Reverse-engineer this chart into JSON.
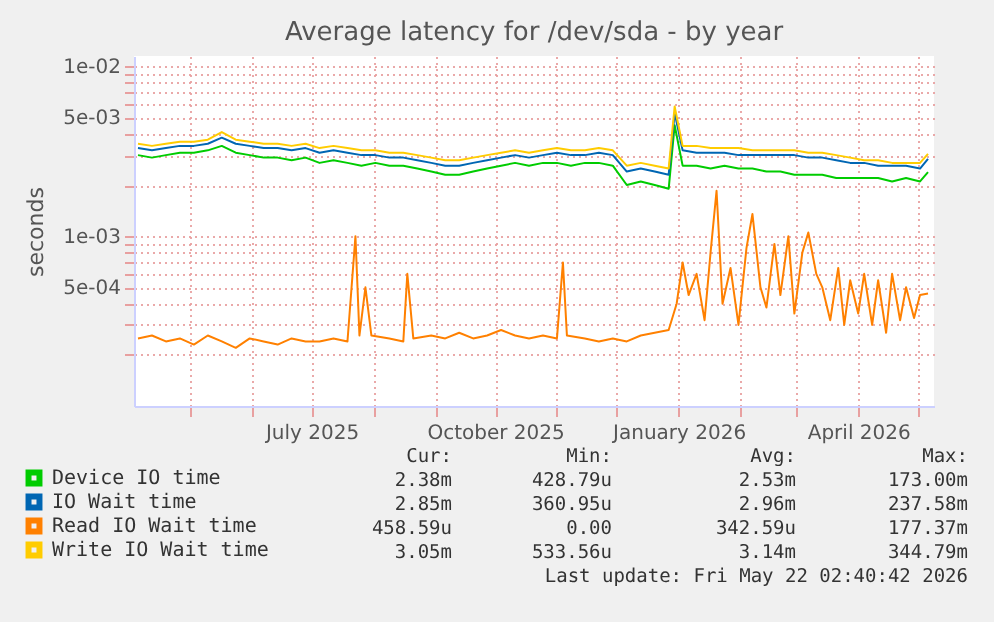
{
  "chart_data": {
    "type": "line",
    "title": "Average latency for /dev/sda - by year",
    "ylabel": "seconds",
    "log": "y",
    "grid": true,
    "legend": "bottom",
    "marker": "none",
    "line_style": "solid",
    "xlim": [
      "2025-04-03",
      "2026-05-09"
    ],
    "xticks": [
      {
        "value": "2025-05-01",
        "label": null
      },
      {
        "value": "2025-06-01",
        "label": null
      },
      {
        "value": "2025-07-01",
        "label": "July 2025"
      },
      {
        "value": "2025-08-01",
        "label": null
      },
      {
        "value": "2025-09-01",
        "label": null
      },
      {
        "value": "2025-10-01",
        "label": "October 2025"
      },
      {
        "value": "2025-11-01",
        "label": null
      },
      {
        "value": "2025-12-01",
        "label": null
      },
      {
        "value": "2026-01-01",
        "label": "January 2026"
      },
      {
        "value": "2026-02-01",
        "label": null
      },
      {
        "value": "2026-03-01",
        "label": null
      },
      {
        "value": "2026-04-01",
        "label": "April 2026"
      },
      {
        "value": "2026-05-01",
        "label": null
      }
    ],
    "ylim": [
      0.0001,
      0.0115
    ],
    "yticks": [
      {
        "value": 0.0002,
        "label": null
      },
      {
        "value": 0.0003,
        "label": null
      },
      {
        "value": 0.0004,
        "label": null
      },
      {
        "value": 0.0005,
        "label": "5e-04"
      },
      {
        "value": 0.0006,
        "label": null
      },
      {
        "value": 0.0007,
        "label": null
      },
      {
        "value": 0.0008,
        "label": null
      },
      {
        "value": 0.0009,
        "label": null
      },
      {
        "value": 0.001,
        "label": "1e-03"
      },
      {
        "value": 0.002,
        "label": null
      },
      {
        "value": 0.003,
        "label": null
      },
      {
        "value": 0.004,
        "label": null
      },
      {
        "value": 0.005,
        "label": "5e-03"
      },
      {
        "value": 0.006,
        "label": null
      },
      {
        "value": 0.007,
        "label": null
      },
      {
        "value": 0.008,
        "label": null
      },
      {
        "value": 0.009,
        "label": null
      },
      {
        "value": 0.01,
        "label": "1e-02"
      }
    ],
    "x": [
      "2025-04-05",
      "2025-04-12",
      "2025-04-19",
      "2025-04-26",
      "2025-05-03",
      "2025-05-10",
      "2025-05-17",
      "2025-05-24",
      "2025-05-31",
      "2025-06-07",
      "2025-06-14",
      "2025-06-21",
      "2025-06-28",
      "2025-07-05",
      "2025-07-12",
      "2025-07-19",
      "2025-07-26",
      "2025-08-02",
      "2025-08-09",
      "2025-08-16",
      "2025-08-23",
      "2025-08-30",
      "2025-09-06",
      "2025-09-13",
      "2025-09-20",
      "2025-09-27",
      "2025-10-04",
      "2025-10-11",
      "2025-10-18",
      "2025-10-25",
      "2025-11-01",
      "2025-11-08",
      "2025-11-15",
      "2025-11-22",
      "2025-11-29",
      "2025-12-06",
      "2025-12-13",
      "2025-12-20",
      "2025-12-27",
      "2025-12-30",
      "2026-01-03",
      "2026-01-10",
      "2026-01-17",
      "2026-01-24",
      "2026-01-31",
      "2026-02-07",
      "2026-02-14",
      "2026-02-21",
      "2026-02-28",
      "2026-03-07",
      "2026-03-14",
      "2026-03-21",
      "2026-03-28",
      "2026-04-04",
      "2026-04-11",
      "2026-04-18",
      "2026-04-25",
      "2026-05-02",
      "2026-05-06"
    ],
    "series": [
      {
        "name": "Device IO time",
        "color": "#00cc00",
        "values": [
          0.003,
          0.0029,
          0.003,
          0.0031,
          0.0031,
          0.0032,
          0.0034,
          0.0031,
          0.003,
          0.0029,
          0.0029,
          0.0028,
          0.0029,
          0.0027,
          0.0028,
          0.0027,
          0.0026,
          0.0027,
          0.0026,
          0.0026,
          0.0025,
          0.0024,
          0.0023,
          0.0023,
          0.0024,
          0.0025,
          0.0026,
          0.0027,
          0.0026,
          0.0027,
          0.0027,
          0.0026,
          0.0027,
          0.0027,
          0.0026,
          0.002,
          0.0021,
          0.002,
          0.0019,
          0.0045,
          0.0026,
          0.0026,
          0.0025,
          0.0026,
          0.0025,
          0.0025,
          0.0024,
          0.0024,
          0.0023,
          0.0023,
          0.0023,
          0.0022,
          0.0022,
          0.0022,
          0.0022,
          0.0021,
          0.0022,
          0.0021,
          0.00238
        ]
      },
      {
        "name": "IO Wait time",
        "color": "#0066b3",
        "values": [
          0.0033,
          0.0032,
          0.0033,
          0.0034,
          0.0034,
          0.0035,
          0.0038,
          0.0035,
          0.0034,
          0.0033,
          0.0033,
          0.0032,
          0.0033,
          0.0031,
          0.0032,
          0.0031,
          0.003,
          0.003,
          0.0029,
          0.0029,
          0.0028,
          0.0027,
          0.0026,
          0.0026,
          0.0027,
          0.0028,
          0.0029,
          0.003,
          0.0029,
          0.003,
          0.0031,
          0.003,
          0.003,
          0.0031,
          0.003,
          0.0024,
          0.0025,
          0.0024,
          0.0023,
          0.0053,
          0.0032,
          0.0031,
          0.0031,
          0.0031,
          0.003,
          0.003,
          0.003,
          0.003,
          0.003,
          0.0029,
          0.0029,
          0.0028,
          0.0027,
          0.0027,
          0.0026,
          0.0026,
          0.0026,
          0.0025,
          0.00285
        ]
      },
      {
        "name": "Read IO Wait time",
        "color": "#ff8000",
        "x": [
          "2025-04-05",
          "2025-04-12",
          "2025-04-19",
          "2025-04-26",
          "2025-05-03",
          "2025-05-10",
          "2025-05-17",
          "2025-05-24",
          "2025-05-31",
          "2025-06-07",
          "2025-06-14",
          "2025-06-21",
          "2025-06-28",
          "2025-07-05",
          "2025-07-12",
          "2025-07-19",
          "2025-07-23",
          "2025-07-25",
          "2025-07-28",
          "2025-07-31",
          "2025-08-09",
          "2025-08-16",
          "2025-08-18",
          "2025-08-21",
          "2025-08-30",
          "2025-09-06",
          "2025-09-13",
          "2025-09-20",
          "2025-09-27",
          "2025-10-04",
          "2025-10-11",
          "2025-10-18",
          "2025-10-25",
          "2025-11-01",
          "2025-11-04",
          "2025-11-06",
          "2025-11-15",
          "2025-11-22",
          "2025-11-29",
          "2025-12-06",
          "2025-12-13",
          "2025-12-20",
          "2025-12-27",
          "2025-12-31",
          "2026-01-03",
          "2026-01-06",
          "2026-01-10",
          "2026-01-14",
          "2026-01-17",
          "2026-01-20",
          "2026-01-23",
          "2026-01-27",
          "2026-01-31",
          "2026-02-04",
          "2026-02-07",
          "2026-02-11",
          "2026-02-14",
          "2026-02-18",
          "2026-02-21",
          "2026-02-25",
          "2026-02-28",
          "2026-03-04",
          "2026-03-07",
          "2026-03-11",
          "2026-03-14",
          "2026-03-18",
          "2026-03-22",
          "2026-03-25",
          "2026-03-28",
          "2026-04-01",
          "2026-04-04",
          "2026-04-08",
          "2026-04-11",
          "2026-04-15",
          "2026-04-18",
          "2026-04-22",
          "2026-04-25",
          "2026-04-29",
          "2026-05-02",
          "2026-05-06"
        ],
        "values": [
          0.00025,
          0.00026,
          0.00024,
          0.00025,
          0.00023,
          0.00026,
          0.00024,
          0.00022,
          0.00025,
          0.00024,
          0.00023,
          0.00025,
          0.00024,
          0.00024,
          0.00025,
          0.00024,
          0.001,
          0.00026,
          0.0005,
          0.00026,
          0.00025,
          0.00024,
          0.0006,
          0.00025,
          0.00026,
          0.00025,
          0.00027,
          0.00025,
          0.00026,
          0.00028,
          0.00026,
          0.00025,
          0.00026,
          0.00025,
          0.0007,
          0.00026,
          0.00025,
          0.00024,
          0.00025,
          0.00024,
          0.00026,
          0.00027,
          0.00028,
          0.0004,
          0.0007,
          0.00045,
          0.0006,
          0.00032,
          0.0008,
          0.00185,
          0.0004,
          0.00065,
          0.0003,
          0.00085,
          0.00135,
          0.0005,
          0.00038,
          0.0009,
          0.00045,
          0.001,
          0.00035,
          0.0008,
          0.00105,
          0.0006,
          0.0005,
          0.00032,
          0.00065,
          0.0003,
          0.00055,
          0.00035,
          0.0006,
          0.0003,
          0.00055,
          0.00027,
          0.0006,
          0.00032,
          0.0005,
          0.00033,
          0.00045,
          0.000459
        ]
      },
      {
        "name": "Write IO Wait time",
        "color": "#ffcc00",
        "values": [
          0.0035,
          0.0034,
          0.0035,
          0.0036,
          0.0036,
          0.0037,
          0.0041,
          0.0037,
          0.0036,
          0.0035,
          0.0035,
          0.0034,
          0.0035,
          0.0033,
          0.0034,
          0.0033,
          0.0032,
          0.0032,
          0.0031,
          0.0031,
          0.003,
          0.0029,
          0.0028,
          0.0028,
          0.0029,
          0.003,
          0.0031,
          0.0032,
          0.0031,
          0.0032,
          0.0033,
          0.0032,
          0.0032,
          0.0033,
          0.0032,
          0.0026,
          0.0027,
          0.0026,
          0.0025,
          0.0058,
          0.0034,
          0.0034,
          0.0033,
          0.0033,
          0.0033,
          0.0032,
          0.0032,
          0.0032,
          0.0032,
          0.0031,
          0.0031,
          0.003,
          0.0029,
          0.0028,
          0.0028,
          0.0027,
          0.0027,
          0.0027,
          0.00305
        ]
      }
    ],
    "annotations": [
      "Cur:",
      "Min:",
      "Avg:",
      "Max:",
      "2.38m",
      "428.79u",
      "2.53m",
      "173.00m",
      "2.85m",
      "360.95u",
      "2.96m",
      "237.58m",
      "458.59u",
      "0.00",
      "342.59u",
      "177.37m",
      "3.05m",
      "533.56u",
      "3.14m",
      "344.79m",
      "Last update: Fri May 22 02:40:42 2026"
    ]
  }
}
